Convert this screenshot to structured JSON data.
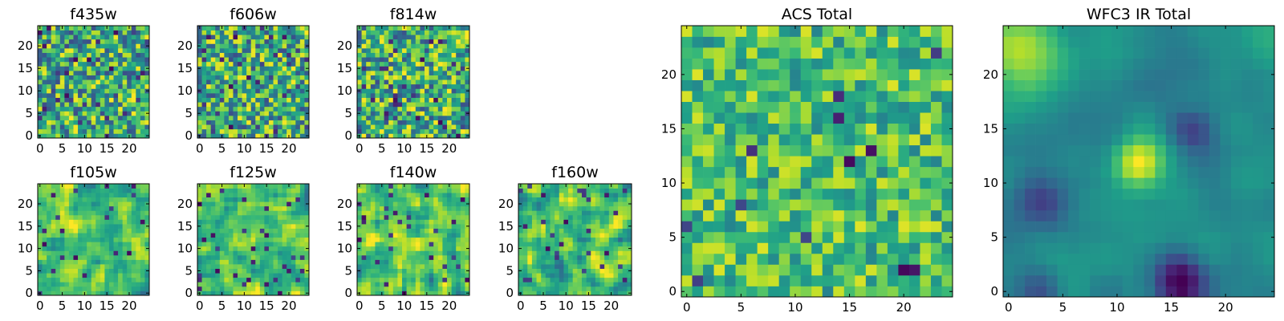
{
  "chart_data": [
    {
      "type": "heatmap",
      "id": "f435w",
      "title": "f435w",
      "grid_size": 25,
      "xlim": [
        -0.5,
        24.5
      ],
      "ylim": [
        -0.5,
        24.5
      ],
      "xticks": [
        0,
        5,
        10,
        15,
        20
      ],
      "yticks": [
        0,
        5,
        10,
        15,
        20
      ],
      "colormap": "viridis",
      "value_range": [
        0,
        1
      ],
      "pattern": "uniform random noise",
      "mean": 0.62,
      "spread": 0.38,
      "smoothness": 0,
      "dark_pixel_fraction": 0.05,
      "seed": 11
    },
    {
      "type": "heatmap",
      "id": "f606w",
      "title": "f606w",
      "grid_size": 25,
      "xlim": [
        -0.5,
        24.5
      ],
      "ylim": [
        -0.5,
        24.5
      ],
      "xticks": [
        0,
        5,
        10,
        15,
        20
      ],
      "yticks": [
        0,
        5,
        10,
        15,
        20
      ],
      "colormap": "viridis",
      "value_range": [
        0,
        1
      ],
      "pattern": "uniform random noise",
      "mean": 0.62,
      "spread": 0.38,
      "smoothness": 0,
      "dark_pixel_fraction": 0.05,
      "seed": 23
    },
    {
      "type": "heatmap",
      "id": "f814w",
      "title": "f814w",
      "grid_size": 25,
      "xlim": [
        -0.5,
        24.5
      ],
      "ylim": [
        -0.5,
        24.5
      ],
      "xticks": [
        0,
        5,
        10,
        15,
        20
      ],
      "yticks": [
        0,
        5,
        10,
        15,
        20
      ],
      "colormap": "viridis",
      "value_range": [
        0,
        1
      ],
      "pattern": "uniform random noise",
      "mean": 0.63,
      "spread": 0.38,
      "smoothness": 0,
      "dark_pixel_fraction": 0.05,
      "seed": 37
    },
    {
      "type": "heatmap",
      "id": "f105w",
      "title": "f105w",
      "grid_size": 25,
      "xlim": [
        -0.5,
        24.5
      ],
      "ylim": [
        -0.5,
        24.5
      ],
      "xticks": [
        0,
        5,
        10,
        15,
        20
      ],
      "yticks": [
        0,
        5,
        10,
        15,
        20
      ],
      "colormap": "viridis",
      "value_range": [
        0,
        1
      ],
      "pattern": "correlated noise",
      "mean": 0.7,
      "spread": 0.35,
      "smoothness": 1,
      "dark_pixel_fraction": 0.04,
      "seed": 41
    },
    {
      "type": "heatmap",
      "id": "f125w",
      "title": "f125w",
      "grid_size": 25,
      "xlim": [
        -0.5,
        24.5
      ],
      "ylim": [
        -0.5,
        24.5
      ],
      "xticks": [
        0,
        5,
        10,
        15,
        20
      ],
      "yticks": [
        0,
        5,
        10,
        15,
        20
      ],
      "colormap": "viridis",
      "value_range": [
        0,
        1
      ],
      "pattern": "correlated noise",
      "mean": 0.7,
      "spread": 0.35,
      "smoothness": 1,
      "dark_pixel_fraction": 0.04,
      "seed": 53
    },
    {
      "type": "heatmap",
      "id": "f140w",
      "title": "f140w",
      "grid_size": 25,
      "xlim": [
        -0.5,
        24.5
      ],
      "ylim": [
        -0.5,
        24.5
      ],
      "xticks": [
        0,
        5,
        10,
        15,
        20
      ],
      "yticks": [
        0,
        5,
        10,
        15,
        20
      ],
      "colormap": "viridis",
      "value_range": [
        0,
        1
      ],
      "pattern": "correlated noise",
      "mean": 0.7,
      "spread": 0.35,
      "smoothness": 1,
      "dark_pixel_fraction": 0.04,
      "seed": 67
    },
    {
      "type": "heatmap",
      "id": "f160w",
      "title": "f160w",
      "grid_size": 25,
      "xlim": [
        -0.5,
        24.5
      ],
      "ylim": [
        -0.5,
        24.5
      ],
      "xticks": [
        0,
        5,
        10,
        15,
        20
      ],
      "yticks": [
        0,
        5,
        10,
        15,
        20
      ],
      "colormap": "viridis",
      "value_range": [
        0,
        1
      ],
      "pattern": "correlated noise",
      "mean": 0.7,
      "spread": 0.35,
      "smoothness": 1,
      "dark_pixel_fraction": 0.04,
      "seed": 79
    },
    {
      "type": "heatmap",
      "id": "acs_total",
      "title": "ACS Total",
      "grid_size": 25,
      "xlim": [
        -0.5,
        24.5
      ],
      "ylim": [
        -0.5,
        24.5
      ],
      "xticks": [
        0,
        5,
        10,
        15,
        20
      ],
      "yticks": [
        0,
        5,
        10,
        15,
        20
      ],
      "colormap": "viridis",
      "value_range": [
        0,
        1
      ],
      "pattern": "random noise, mostly green-yellow",
      "mean": 0.7,
      "spread": 0.25,
      "smoothness": 0,
      "dark_pixel_fraction": 0.025,
      "seed": 97
    },
    {
      "type": "heatmap",
      "id": "wfc3_ir_total",
      "title": "WFC3 IR Total",
      "grid_size": 25,
      "xlim": [
        -0.5,
        24.5
      ],
      "ylim": [
        -0.5,
        24.5
      ],
      "xticks": [
        0,
        5,
        10,
        15,
        20
      ],
      "yticks": [
        0,
        5,
        10,
        15,
        20
      ],
      "colormap": "viridis",
      "value_range": [
        0,
        1
      ],
      "pattern": "smooth background with bright blobs",
      "mean": 0.5,
      "spread": 0.12,
      "smoothness": 2,
      "dark_pixel_fraction": 0.0,
      "seed": 101,
      "features": [
        {
          "kind": "bright",
          "x": 1,
          "y": 22,
          "sigma": 2.5,
          "amplitude": 0.42
        },
        {
          "kind": "bright",
          "x": 12,
          "y": 12,
          "sigma": 1.6,
          "amplitude": 0.42
        },
        {
          "kind": "dark",
          "x": 16,
          "y": 1,
          "sigma": 1.8,
          "amplitude": -0.42
        },
        {
          "kind": "dark",
          "x": 3,
          "y": 8,
          "sigma": 1.8,
          "amplitude": -0.32
        },
        {
          "kind": "dark",
          "x": 17,
          "y": 15,
          "sigma": 1.5,
          "amplitude": -0.3
        },
        {
          "kind": "dark",
          "x": 3,
          "y": 0,
          "sigma": 1.5,
          "amplitude": -0.28
        }
      ]
    }
  ],
  "colors": {
    "viridis_stops": [
      "#440154",
      "#482878",
      "#3e4989",
      "#31688e",
      "#26828e",
      "#1f9e89",
      "#35b779",
      "#6ece58",
      "#b5de2b",
      "#fde725"
    ]
  }
}
